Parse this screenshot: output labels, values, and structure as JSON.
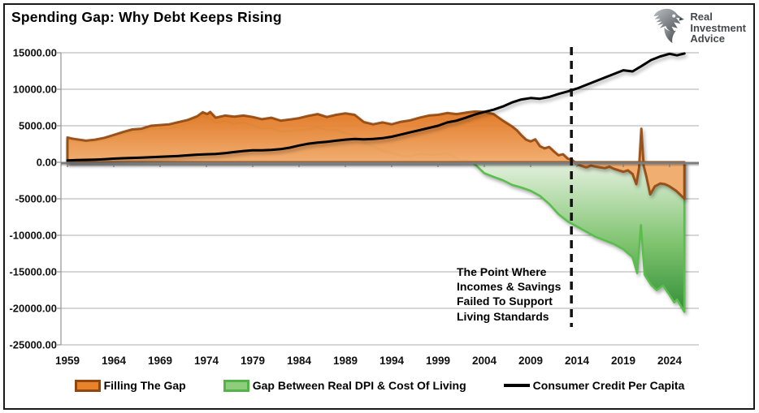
{
  "header": {
    "title": "Spending Gap: Why Debt Keeps Rising"
  },
  "logo": {
    "line1": "Real",
    "line2": "Investment",
    "line3": "Advice"
  },
  "annotation": {
    "text": "The Point Where\nIncomes & Savings\nFailed To Support\nLiving Standards"
  },
  "chart_data": {
    "type": "combo-area-line",
    "title": "Spending Gap: Why Debt Keeps Rising",
    "xlabel": "",
    "ylabel": "",
    "xlim": [
      1958.3,
      2027.2
    ],
    "ylim": [
      -25000,
      15000
    ],
    "grid": "horizontal",
    "legend_position": "bottom",
    "x_ticks": [
      1959,
      1964,
      1969,
      1974,
      1979,
      1984,
      1989,
      1994,
      1999,
      2004,
      2009,
      2014,
      2019,
      2024
    ],
    "y_ticks": [
      15000,
      10000,
      5000,
      0,
      -5000,
      -10000,
      -15000,
      -20000,
      -25000
    ],
    "y_tick_labels": [
      "15000.00",
      "10000.00",
      "5000.00",
      "0.00",
      "-5000.00",
      "-10000.00",
      "-15000.00",
      "-20000.00",
      "-25000.00"
    ],
    "vline": {
      "x": 2013.4,
      "style": "dashed",
      "color": "#111111"
    },
    "series": [
      {
        "name": "Gap Between Real DPI & Cost Of Living",
        "type": "area",
        "stroke": "#5abe4e",
        "legend_fill": "#8fcc7b",
        "legend_border": "#52b348",
        "fill_gradient_top": "#e4f0de",
        "fill_gradient_mid": "#7fc46f",
        "fill_gradient_bottom": "#2c8a33",
        "points": [
          [
            1959,
            3050
          ],
          [
            1960,
            2850
          ],
          [
            1961,
            2750
          ],
          [
            1962,
            2850
          ],
          [
            1963,
            3050
          ],
          [
            1964,
            3450
          ],
          [
            1965,
            3850
          ],
          [
            1966,
            4150
          ],
          [
            1967,
            4250
          ],
          [
            1968,
            4650
          ],
          [
            1969,
            4650
          ],
          [
            1970,
            4650
          ],
          [
            1971,
            4950
          ],
          [
            1972,
            5350
          ],
          [
            1973,
            5950
          ],
          [
            1973.6,
            6350
          ],
          [
            1974.2,
            6100
          ],
          [
            1975,
            5350
          ],
          [
            1976,
            5650
          ],
          [
            1977,
            5250
          ],
          [
            1978,
            5450
          ],
          [
            1979,
            5050
          ],
          [
            1980,
            4600
          ],
          [
            1981,
            4700
          ],
          [
            1982,
            4200
          ],
          [
            1983,
            4300
          ],
          [
            1984,
            4400
          ],
          [
            1985,
            4500
          ],
          [
            1986,
            4800
          ],
          [
            1987,
            4350
          ],
          [
            1988,
            4450
          ],
          [
            1989,
            4000
          ],
          [
            1990,
            3650
          ],
          [
            1991,
            2650
          ],
          [
            1992,
            2250
          ],
          [
            1993,
            1550
          ],
          [
            1994,
            1300
          ],
          [
            1995,
            900
          ],
          [
            1996,
            800
          ],
          [
            1997,
            1150
          ],
          [
            1998,
            1000
          ],
          [
            1999,
            1050
          ],
          [
            2000,
            1250
          ],
          [
            2001,
            550
          ],
          [
            2001.5,
            150
          ],
          [
            2002,
            350
          ],
          [
            2003,
            -300
          ],
          [
            2004,
            -1500
          ],
          [
            2005,
            -2000
          ],
          [
            2006,
            -2450
          ],
          [
            2007,
            -3100
          ],
          [
            2008,
            -3450
          ],
          [
            2009,
            -3900
          ],
          [
            2010,
            -4600
          ],
          [
            2011,
            -5700
          ],
          [
            2012,
            -7100
          ],
          [
            2013,
            -8100
          ],
          [
            2014,
            -8800
          ],
          [
            2015,
            -9500
          ],
          [
            2016,
            -10200
          ],
          [
            2017,
            -10700
          ],
          [
            2018,
            -11200
          ],
          [
            2019,
            -11900
          ],
          [
            2020,
            -13000
          ],
          [
            2020.5,
            -15200
          ],
          [
            2020.9,
            -8600
          ],
          [
            2021.3,
            -15400
          ],
          [
            2022,
            -16800
          ],
          [
            2022.6,
            -17500
          ],
          [
            2023.3,
            -16900
          ],
          [
            2024,
            -18200
          ],
          [
            2024.5,
            -19200
          ],
          [
            2024.8,
            -18800
          ],
          [
            2025.6,
            -20500
          ]
        ]
      },
      {
        "name": "Filling The Gap",
        "type": "area",
        "stroke": "#91470e",
        "legend_fill": "#e8832c",
        "legend_border": "#91470e",
        "fill_gradient_top": "#e2751f",
        "fill_gradient_bottom": "#f3ad6e",
        "points": [
          [
            1959,
            3400
          ],
          [
            1959.5,
            3250
          ],
          [
            1960,
            3150
          ],
          [
            1961,
            2950
          ],
          [
            1962,
            3100
          ],
          [
            1963,
            3350
          ],
          [
            1964,
            3750
          ],
          [
            1965,
            4150
          ],
          [
            1966,
            4500
          ],
          [
            1967,
            4600
          ],
          [
            1968,
            5000
          ],
          [
            1969,
            5100
          ],
          [
            1970,
            5200
          ],
          [
            1971,
            5500
          ],
          [
            1972,
            5800
          ],
          [
            1973,
            6300
          ],
          [
            1973.6,
            6850
          ],
          [
            1974.1,
            6600
          ],
          [
            1974.4,
            6900
          ],
          [
            1975,
            6100
          ],
          [
            1976,
            6400
          ],
          [
            1977,
            6250
          ],
          [
            1978,
            6400
          ],
          [
            1979,
            6200
          ],
          [
            1980,
            5900
          ],
          [
            1981,
            6100
          ],
          [
            1982,
            5700
          ],
          [
            1983,
            5850
          ],
          [
            1984,
            6050
          ],
          [
            1985,
            6350
          ],
          [
            1986,
            6600
          ],
          [
            1987,
            6200
          ],
          [
            1988,
            6500
          ],
          [
            1989,
            6700
          ],
          [
            1990,
            6500
          ],
          [
            1991,
            5500
          ],
          [
            1992,
            5200
          ],
          [
            1993,
            5450
          ],
          [
            1994,
            5200
          ],
          [
            1995,
            5550
          ],
          [
            1996,
            5750
          ],
          [
            1997,
            6100
          ],
          [
            1998,
            6400
          ],
          [
            1999,
            6500
          ],
          [
            2000,
            6750
          ],
          [
            2001,
            6600
          ],
          [
            2002,
            6800
          ],
          [
            2003,
            6950
          ],
          [
            2004,
            6900
          ],
          [
            2005,
            6600
          ],
          [
            2006,
            5700
          ],
          [
            2007,
            4900
          ],
          [
            2007.5,
            4400
          ],
          [
            2008,
            3700
          ],
          [
            2008.5,
            3100
          ],
          [
            2009,
            2850
          ],
          [
            2009.5,
            3150
          ],
          [
            2010,
            2200
          ],
          [
            2010.5,
            1900
          ],
          [
            2011,
            2100
          ],
          [
            2011.5,
            1500
          ],
          [
            2012,
            950
          ],
          [
            2012.5,
            1100
          ],
          [
            2013,
            500
          ],
          [
            2013.5,
            300
          ],
          [
            2014,
            -300
          ],
          [
            2015,
            -700
          ],
          [
            2015.5,
            -450
          ],
          [
            2016,
            -600
          ],
          [
            2017,
            -800
          ],
          [
            2017.5,
            -600
          ],
          [
            2018,
            -900
          ],
          [
            2019,
            -1300
          ],
          [
            2019.5,
            -1100
          ],
          [
            2020,
            -1600
          ],
          [
            2020.4,
            -3000
          ],
          [
            2020.7,
            -800
          ],
          [
            2020.95,
            4600
          ],
          [
            2021.2,
            -500
          ],
          [
            2021.5,
            -2000
          ],
          [
            2021.9,
            -4400
          ],
          [
            2022.4,
            -3300
          ],
          [
            2023,
            -2900
          ],
          [
            2023.5,
            -3000
          ],
          [
            2024,
            -3300
          ],
          [
            2024.7,
            -3900
          ],
          [
            2025.2,
            -4500
          ],
          [
            2025.6,
            -5000
          ]
        ]
      },
      {
        "name": "Consumer Credit Per Capita",
        "type": "line",
        "stroke": "#000000",
        "legend_fill": "#000000",
        "legend_border": "#000000",
        "points": [
          [
            1959,
            250
          ],
          [
            1960,
            300
          ],
          [
            1961,
            330
          ],
          [
            1962,
            370
          ],
          [
            1963,
            420
          ],
          [
            1964,
            500
          ],
          [
            1965,
            560
          ],
          [
            1966,
            600
          ],
          [
            1967,
            630
          ],
          [
            1968,
            690
          ],
          [
            1969,
            740
          ],
          [
            1970,
            800
          ],
          [
            1971,
            860
          ],
          [
            1972,
            950
          ],
          [
            1973,
            1050
          ],
          [
            1974,
            1100
          ],
          [
            1975,
            1150
          ],
          [
            1976,
            1260
          ],
          [
            1977,
            1400
          ],
          [
            1978,
            1550
          ],
          [
            1979,
            1650
          ],
          [
            1980,
            1650
          ],
          [
            1981,
            1700
          ],
          [
            1982,
            1800
          ],
          [
            1983,
            2000
          ],
          [
            1984,
            2300
          ],
          [
            1985,
            2550
          ],
          [
            1986,
            2700
          ],
          [
            1987,
            2800
          ],
          [
            1988,
            2950
          ],
          [
            1989,
            3100
          ],
          [
            1990,
            3200
          ],
          [
            1991,
            3150
          ],
          [
            1992,
            3200
          ],
          [
            1993,
            3300
          ],
          [
            1994,
            3500
          ],
          [
            1995,
            3800
          ],
          [
            1996,
            4100
          ],
          [
            1997,
            4400
          ],
          [
            1998,
            4700
          ],
          [
            1999,
            5000
          ],
          [
            2000,
            5450
          ],
          [
            2001,
            5700
          ],
          [
            2002,
            6100
          ],
          [
            2003,
            6550
          ],
          [
            2004,
            6900
          ],
          [
            2005,
            7200
          ],
          [
            2006,
            7650
          ],
          [
            2007,
            8200
          ],
          [
            2008,
            8600
          ],
          [
            2009,
            8800
          ],
          [
            2010,
            8700
          ],
          [
            2011,
            8950
          ],
          [
            2012,
            9350
          ],
          [
            2013,
            9700
          ],
          [
            2014,
            10100
          ],
          [
            2015,
            10600
          ],
          [
            2016,
            11100
          ],
          [
            2017,
            11600
          ],
          [
            2018,
            12100
          ],
          [
            2019,
            12600
          ],
          [
            2020,
            12450
          ],
          [
            2021,
            13200
          ],
          [
            2022,
            14000
          ],
          [
            2023,
            14500
          ],
          [
            2024,
            14850
          ],
          [
            2024.8,
            14650
          ],
          [
            2025.6,
            14900
          ]
        ]
      }
    ]
  }
}
